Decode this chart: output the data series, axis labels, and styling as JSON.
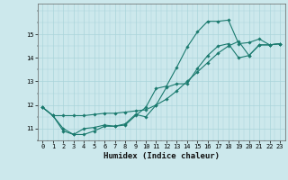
{
  "xlabel": "Humidex (Indice chaleur)",
  "ylabel": "",
  "xlim": [
    -0.5,
    23.5
  ],
  "ylim": [
    10.5,
    16.3
  ],
  "bg_color": "#cce8ec",
  "grid_color": "#aad4da",
  "line_color": "#1a7a6e",
  "x_ticks": [
    0,
    1,
    2,
    3,
    4,
    5,
    6,
    7,
    8,
    9,
    10,
    11,
    12,
    13,
    14,
    15,
    16,
    17,
    18,
    19,
    20,
    21,
    22,
    23
  ],
  "y_ticks": [
    11,
    12,
    13,
    14,
    15
  ],
  "line1_x": [
    0,
    1,
    2,
    3,
    4,
    5,
    6,
    7,
    8,
    9,
    10,
    11,
    12,
    13,
    14,
    15,
    16,
    17,
    18,
    19,
    20,
    21,
    22,
    23
  ],
  "line1_y": [
    11.9,
    11.55,
    11.0,
    10.75,
    11.0,
    11.05,
    11.15,
    11.1,
    11.15,
    11.55,
    11.9,
    12.7,
    12.8,
    13.6,
    14.45,
    15.1,
    15.55,
    15.55,
    15.6,
    14.6,
    14.65,
    14.8,
    14.55,
    14.6
  ],
  "line2_x": [
    0,
    1,
    2,
    3,
    4,
    5,
    6,
    7,
    8,
    9,
    10,
    11,
    12,
    13,
    14,
    15,
    16,
    17,
    18,
    19,
    20,
    21,
    22,
    23
  ],
  "line2_y": [
    11.9,
    11.55,
    11.55,
    11.55,
    11.55,
    11.6,
    11.65,
    11.65,
    11.7,
    11.75,
    11.8,
    12.0,
    12.25,
    12.6,
    13.0,
    13.4,
    13.8,
    14.2,
    14.5,
    14.7,
    14.1,
    14.55,
    14.55,
    14.6
  ],
  "line3_x": [
    0,
    1,
    2,
    3,
    4,
    5,
    6,
    7,
    8,
    9,
    10,
    11,
    12,
    13,
    14,
    15,
    16,
    17,
    18,
    19,
    20,
    21,
    22,
    23
  ],
  "line3_y": [
    11.9,
    11.55,
    10.9,
    10.75,
    10.75,
    10.9,
    11.1,
    11.1,
    11.2,
    11.6,
    11.5,
    12.0,
    12.75,
    12.9,
    12.9,
    13.55,
    14.1,
    14.5,
    14.6,
    14.0,
    14.1,
    14.55,
    14.55,
    14.6
  ]
}
